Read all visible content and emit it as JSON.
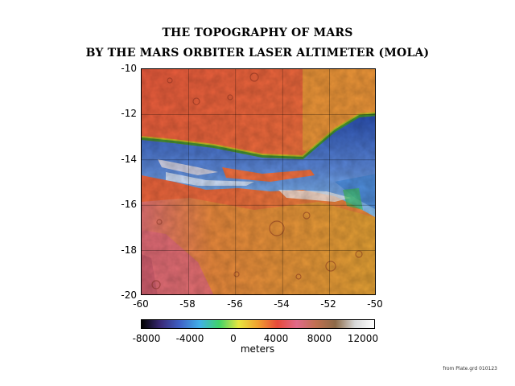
{
  "title": {
    "line1": "THE TOPOGRAPHY OF MARS",
    "line2": "BY THE MARS ORBITER LASER ALTIMETER (MOLA)"
  },
  "map": {
    "y_ticks": [
      "-10",
      "-12",
      "-14",
      "-16",
      "-18",
      "-20"
    ],
    "x_ticks": [
      "-60",
      "-58",
      "-56",
      "-54",
      "-52",
      "-50"
    ],
    "lat_range": [
      -20,
      -10
    ],
    "lon_range": [
      -60,
      -50
    ]
  },
  "colorbar": {
    "tick_labels": [
      "-8000",
      "-4000",
      "0",
      "4000",
      "8000",
      "12000"
    ],
    "units": "meters",
    "range": [
      -8000,
      13000
    ],
    "colors": [
      "#000000",
      "#3a2a78",
      "#3f63c8",
      "#42b0e8",
      "#3fd26a",
      "#e8e640",
      "#f0a030",
      "#e84a3a",
      "#e06a8a",
      "#c07050",
      "#8c6a48",
      "#d8d8d8",
      "#ffffff"
    ]
  },
  "source_note": "from Plate.grd 010123"
}
